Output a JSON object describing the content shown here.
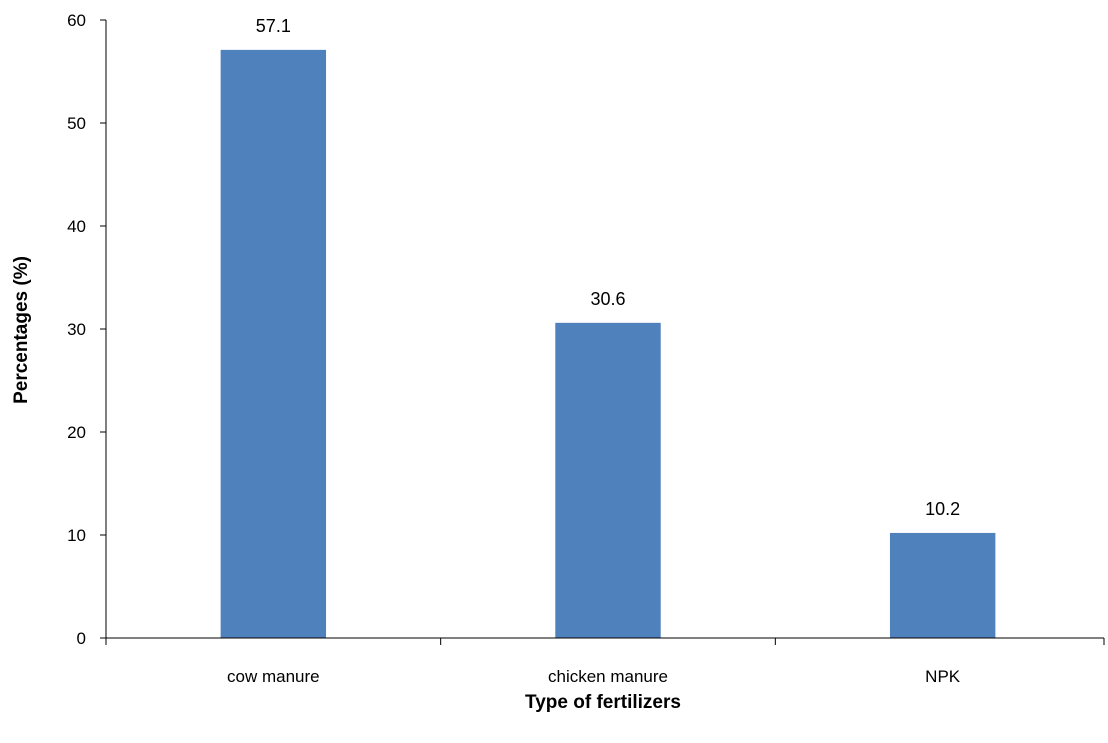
{
  "chart_data": {
    "type": "bar",
    "categories": [
      "cow manure",
      "chicken manure",
      "NPK"
    ],
    "values": [
      57.1,
      30.6,
      10.2
    ],
    "data_labels": [
      "57.1",
      "30.6",
      "10.2"
    ],
    "xlabel": "Type of fertilizers",
    "ylabel": "Percentages (%)",
    "ylim": [
      0,
      60
    ],
    "yticks": [
      "0",
      "10",
      "20",
      "30",
      "40",
      "50",
      "60"
    ],
    "grid": false,
    "legend": "none",
    "bar_color": "#4f81bd"
  }
}
